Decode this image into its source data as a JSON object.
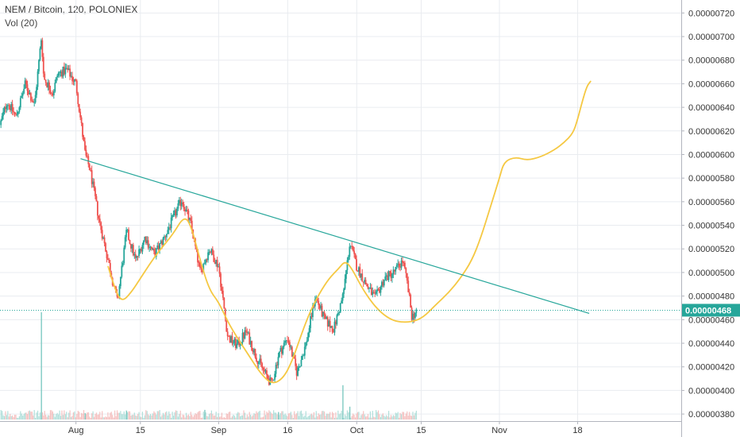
{
  "legend": {
    "title": "NEM / Bitcoin, 120, POLONIEX",
    "volume": "Vol (20)"
  },
  "colors": {
    "up": "#26a69a",
    "down": "#ef5350",
    "trendline": "#26a69a",
    "projection": "#f5c842",
    "grid": "#e9ecf0",
    "axis_text": "#333333",
    "price_line": "#26a69a"
  },
  "current_price": {
    "value": 4.68e-06,
    "label": "0.00000468"
  },
  "chart_data": {
    "type": "candlestick",
    "title": "NEM / Bitcoin, 120, POLONIEX",
    "y_axis": {
      "ticks": [
        {
          "value": 7.2e-06,
          "label": "0.00000720"
        },
        {
          "value": 7e-06,
          "label": "0.00000700"
        },
        {
          "value": 6.8e-06,
          "label": "0.00000680"
        },
        {
          "value": 6.6e-06,
          "label": "0.00000660"
        },
        {
          "value": 6.4e-06,
          "label": "0.00000640"
        },
        {
          "value": 6.2e-06,
          "label": "0.00000620"
        },
        {
          "value": 6e-06,
          "label": "0.00000600"
        },
        {
          "value": 5.8e-06,
          "label": "0.00000580"
        },
        {
          "value": 5.6e-06,
          "label": "0.00000560"
        },
        {
          "value": 5.4e-06,
          "label": "0.00000540"
        },
        {
          "value": 5.2e-06,
          "label": "0.00000520"
        },
        {
          "value": 5e-06,
          "label": "0.00000500"
        },
        {
          "value": 4.8e-06,
          "label": "0.00000480"
        },
        {
          "value": 4.6e-06,
          "label": "0.00000460"
        },
        {
          "value": 4.4e-06,
          "label": "0.00000440"
        },
        {
          "value": 4.2e-06,
          "label": "0.00000420"
        },
        {
          "value": 4e-06,
          "label": "0.00000400"
        },
        {
          "value": 3.8e-06,
          "label": "0.00000380"
        }
      ],
      "range": [
        3.74e-06,
        7.31e-06
      ]
    },
    "x_axis": {
      "ticks": [
        {
          "day": 0,
          "label": "Aug"
        },
        {
          "day": 14,
          "label": "15"
        },
        {
          "day": 31,
          "label": "Sep"
        },
        {
          "day": 46,
          "label": "16"
        },
        {
          "day": 61,
          "label": "Oct"
        },
        {
          "day": 75,
          "label": "15"
        },
        {
          "day": 92,
          "label": "Nov"
        },
        {
          "day": 109,
          "label": "18"
        }
      ],
      "range_days": [
        -16.5,
        131.5
      ]
    },
    "price_path": [
      [
        -16.5,
        6.25e-06
      ],
      [
        -15,
        6.45e-06
      ],
      [
        -13,
        6.32e-06
      ],
      [
        -11,
        6.6e-06
      ],
      [
        -9,
        6.42e-06
      ],
      [
        -7,
        6.65e-06
      ],
      [
        -5,
        6.52e-06
      ],
      [
        -7.5,
        7e-06
      ],
      [
        -4,
        6.68e-06
      ],
      [
        -2,
        6.72e-06
      ],
      [
        0,
        6.6e-06
      ],
      [
        2,
        6e-06
      ],
      [
        3,
        5.88e-06
      ],
      [
        5,
        5.45e-06
      ],
      [
        7,
        5.1e-06
      ],
      [
        9,
        4.75e-06
      ],
      [
        11,
        5.35e-06
      ],
      [
        13,
        5.1e-06
      ],
      [
        15,
        5.3e-06
      ],
      [
        17,
        5.15e-06
      ],
      [
        19,
        5.28e-06
      ],
      [
        21,
        5.45e-06
      ],
      [
        23,
        5.62e-06
      ],
      [
        25,
        5.4e-06
      ],
      [
        27,
        5e-06
      ],
      [
        29,
        5.2e-06
      ],
      [
        31,
        5.05e-06
      ],
      [
        33,
        4.45e-06
      ],
      [
        35,
        4.38e-06
      ],
      [
        37,
        4.5e-06
      ],
      [
        39,
        4.3e-06
      ],
      [
        41,
        4.15e-06
      ],
      [
        42.5,
        4.05e-06
      ],
      [
        44,
        4.3e-06
      ],
      [
        46,
        4.45e-06
      ],
      [
        48,
        4.15e-06
      ],
      [
        50,
        4.4e-06
      ],
      [
        52,
        4.8e-06
      ],
      [
        54,
        4.6e-06
      ],
      [
        56,
        4.52e-06
      ],
      [
        58,
        4.8e-06
      ],
      [
        59.5,
        5.25e-06
      ],
      [
        61,
        5.05e-06
      ],
      [
        63,
        4.9e-06
      ],
      [
        65,
        4.78e-06
      ],
      [
        67,
        4.95e-06
      ],
      [
        69,
        5e-06
      ],
      [
        71,
        5.1e-06
      ],
      [
        72,
        4.9e-06
      ],
      [
        73,
        4.62e-06
      ],
      [
        74,
        4.68e-06
      ]
    ],
    "trendline": [
      [
        1,
        5.965e-06
      ],
      [
        111.5,
        4.653e-06
      ]
    ],
    "projection": [
      [
        7,
        5.05e-06
      ],
      [
        8.5,
        4.85e-06
      ],
      [
        10,
        4.75e-06
      ],
      [
        12,
        4.83e-06
      ],
      [
        14,
        4.95e-06
      ],
      [
        16,
        5.07e-06
      ],
      [
        18,
        5.18e-06
      ],
      [
        21,
        5.32e-06
      ],
      [
        23.5,
        5.48e-06
      ],
      [
        25,
        5.4e-06
      ],
      [
        27,
        5.1e-06
      ],
      [
        29,
        4.85e-06
      ],
      [
        31,
        4.75e-06
      ],
      [
        33,
        4.58e-06
      ],
      [
        35,
        4.45e-06
      ],
      [
        37.5,
        4.3e-06
      ],
      [
        40,
        4.15e-06
      ],
      [
        42.5,
        4.05e-06
      ],
      [
        45,
        4.1e-06
      ],
      [
        47,
        4.25e-06
      ],
      [
        49,
        4.48e-06
      ],
      [
        51,
        4.68e-06
      ],
      [
        53,
        4.83e-06
      ],
      [
        55,
        4.95e-06
      ],
      [
        57,
        5.03e-06
      ],
      [
        58.5,
        5.1e-06
      ],
      [
        60,
        5.03e-06
      ],
      [
        62,
        4.88e-06
      ],
      [
        64,
        4.76e-06
      ],
      [
        66,
        4.67e-06
      ],
      [
        68,
        4.61e-06
      ],
      [
        70,
        4.58e-06
      ],
      [
        73,
        4.58e-06
      ],
      [
        75.5,
        4.62e-06
      ],
      [
        78,
        4.72e-06
      ],
      [
        81,
        4.83e-06
      ],
      [
        83.5,
        4.95e-06
      ],
      [
        86,
        5.1e-06
      ],
      [
        88,
        5.3e-06
      ],
      [
        90,
        5.55e-06
      ],
      [
        92,
        5.8e-06
      ],
      [
        93,
        5.94e-06
      ],
      [
        95.5,
        5.98e-06
      ],
      [
        98,
        5.95e-06
      ],
      [
        101,
        5.98e-06
      ],
      [
        104,
        6.04e-06
      ],
      [
        106,
        6.1e-06
      ],
      [
        108,
        6.18e-06
      ],
      [
        109,
        6.3e-06
      ],
      [
        110,
        6.45e-06
      ],
      [
        111,
        6.58e-06
      ],
      [
        111.8,
        6.62e-06
      ]
    ],
    "volume_spikes": [
      {
        "day": -7.5,
        "volume": 1.0
      },
      {
        "day": 58,
        "volume": 0.32
      },
      {
        "day": 59.5,
        "volume": 0.12
      },
      {
        "day": 28,
        "volume": 0.09
      },
      {
        "day": 2,
        "volume": 0.06
      },
      {
        "day": 11,
        "volume": 0.08
      },
      {
        "day": 44,
        "volume": 0.07
      }
    ],
    "grid": true,
    "legend_position": "top-left"
  }
}
